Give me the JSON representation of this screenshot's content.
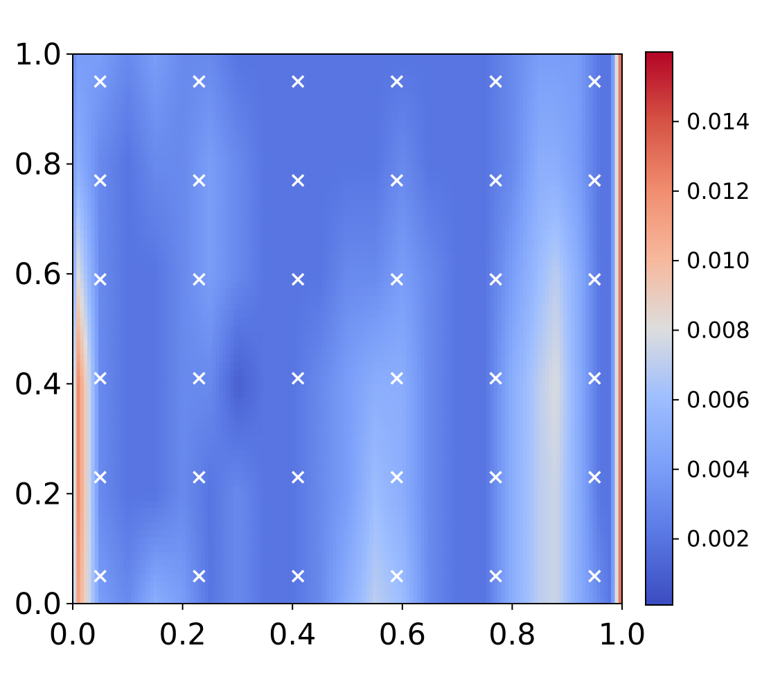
{
  "chart_data": {
    "type": "heatmap",
    "title": "",
    "xlabel": "",
    "ylabel": "",
    "xlim": [
      0.0,
      1.0
    ],
    "ylim": [
      0.0,
      1.0
    ],
    "x_ticks": [
      "0.0",
      "0.2",
      "0.4",
      "0.6",
      "0.8",
      "1.0"
    ],
    "x_tick_values": [
      0.0,
      0.2,
      0.4,
      0.6,
      0.8,
      1.0
    ],
    "y_ticks": [
      "0.0",
      "0.2",
      "0.4",
      "0.6",
      "0.8",
      "1.0"
    ],
    "y_tick_values": [
      0.0,
      0.2,
      0.4,
      0.6,
      0.8,
      1.0
    ],
    "colormap": "coolwarm",
    "colorbar": {
      "range": [
        0.0001,
        0.016
      ],
      "ticks": [
        "0.002",
        "0.004",
        "0.006",
        "0.008",
        "0.010",
        "0.012",
        "0.014"
      ],
      "tick_values": [
        0.002,
        0.004,
        0.006,
        0.008,
        0.01,
        0.012,
        0.014
      ]
    },
    "markers": {
      "symbol": "x",
      "color": "#ffffff",
      "x": [
        0.05,
        0.23,
        0.41,
        0.59,
        0.77,
        0.95
      ],
      "y": [
        0.05,
        0.23,
        0.41,
        0.59,
        0.77,
        0.95
      ]
    },
    "field_estimate": {
      "x": [
        0.0,
        0.01,
        0.05,
        0.1,
        0.15,
        0.2,
        0.25,
        0.3,
        0.35,
        0.4,
        0.45,
        0.5,
        0.55,
        0.6,
        0.65,
        0.7,
        0.75,
        0.8,
        0.85,
        0.88,
        0.92,
        0.96,
        0.98,
        0.995,
        1.0
      ],
      "y": [
        0.0,
        0.2,
        0.4,
        0.6,
        0.8,
        1.0
      ],
      "values": [
        [
          0.006,
          0.011,
          0.004,
          0.003,
          0.005,
          0.004,
          0.002,
          0.003,
          0.002,
          0.002,
          0.003,
          0.005,
          0.007,
          0.006,
          0.003,
          0.002,
          0.002,
          0.005,
          0.007,
          0.0075,
          0.005,
          0.003,
          0.002,
          0.011,
          0.016
        ],
        [
          0.006,
          0.012,
          0.003,
          0.002,
          0.002,
          0.003,
          0.002,
          0.003,
          0.002,
          0.002,
          0.003,
          0.004,
          0.006,
          0.005,
          0.003,
          0.002,
          0.002,
          0.005,
          0.007,
          0.0075,
          0.005,
          0.002,
          0.002,
          0.011,
          0.016
        ],
        [
          0.006,
          0.012,
          0.003,
          0.002,
          0.002,
          0.003,
          0.003,
          0.001,
          0.002,
          0.002,
          0.003,
          0.004,
          0.005,
          0.005,
          0.003,
          0.002,
          0.002,
          0.005,
          0.007,
          0.008,
          0.005,
          0.002,
          0.002,
          0.011,
          0.016
        ],
        [
          0.005,
          0.008,
          0.003,
          0.002,
          0.002,
          0.003,
          0.004,
          0.003,
          0.002,
          0.002,
          0.002,
          0.003,
          0.003,
          0.004,
          0.003,
          0.002,
          0.002,
          0.004,
          0.006,
          0.007,
          0.005,
          0.002,
          0.002,
          0.011,
          0.016
        ],
        [
          0.004,
          0.005,
          0.003,
          0.002,
          0.003,
          0.003,
          0.004,
          0.003,
          0.002,
          0.002,
          0.002,
          0.002,
          0.002,
          0.003,
          0.002,
          0.002,
          0.002,
          0.003,
          0.005,
          0.005,
          0.004,
          0.002,
          0.002,
          0.011,
          0.016
        ],
        [
          0.003,
          0.004,
          0.004,
          0.003,
          0.004,
          0.003,
          0.003,
          0.002,
          0.002,
          0.002,
          0.002,
          0.002,
          0.002,
          0.002,
          0.002,
          0.002,
          0.002,
          0.003,
          0.004,
          0.004,
          0.004,
          0.002,
          0.002,
          0.011,
          0.016
        ]
      ]
    }
  }
}
